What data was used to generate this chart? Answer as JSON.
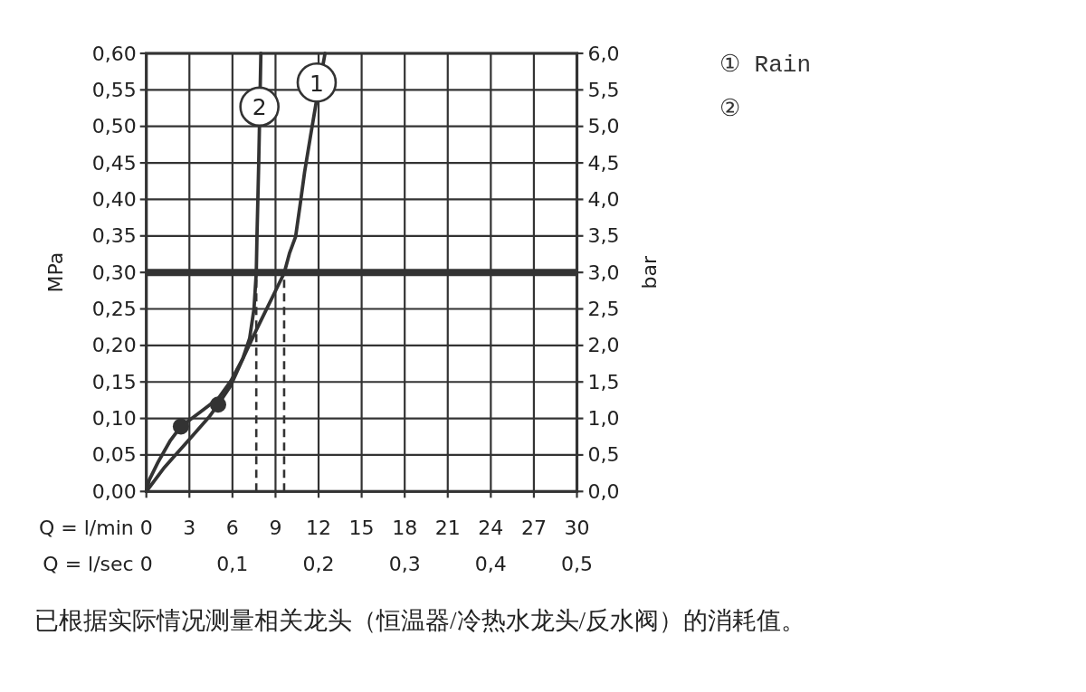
{
  "chart_data": {
    "type": "line",
    "xlabel": "Q = l/min",
    "x2label": "Q = l/sec",
    "ylabel": "MPa",
    "y2label": "bar",
    "xlim": [
      0,
      30
    ],
    "xticks": [
      0,
      3,
      6,
      9,
      12,
      15,
      18,
      21,
      24,
      27,
      30
    ],
    "x2lim": [
      0,
      0.5
    ],
    "x2ticks": [
      0,
      {
        "value": 0.1,
        "label": "0,1"
      },
      {
        "value": 0.2,
        "label": "0,2"
      },
      {
        "value": 0.3,
        "label": "0,3"
      },
      {
        "value": 0.4,
        "label": "0,4"
      },
      {
        "value": 0.5,
        "label": "0,5"
      }
    ],
    "ylim": [
      0,
      0.6
    ],
    "yticks": [
      {
        "value": 0,
        "label": "0,00"
      },
      {
        "value": 0.05,
        "label": "0,05"
      },
      {
        "value": 0.1,
        "label": "0,10"
      },
      {
        "value": 0.15,
        "label": "0,15"
      },
      {
        "value": 0.2,
        "label": "0,20"
      },
      {
        "value": 0.25,
        "label": "0,25"
      },
      {
        "value": 0.3,
        "label": "0,30"
      },
      {
        "value": 0.35,
        "label": "0,35"
      },
      {
        "value": 0.4,
        "label": "0,40"
      },
      {
        "value": 0.45,
        "label": "0,45"
      },
      {
        "value": 0.5,
        "label": "0,50"
      },
      {
        "value": 0.55,
        "label": "0,55"
      },
      {
        "value": 0.6,
        "label": "0,60"
      }
    ],
    "y2lim": [
      0,
      6
    ],
    "y2ticks": [
      {
        "value": 0,
        "label": "0,0"
      },
      {
        "value": 0.5,
        "label": "0,5"
      },
      {
        "value": 1,
        "label": "1,0"
      },
      {
        "value": 1.5,
        "label": "1,5"
      },
      {
        "value": 2,
        "label": "2,0"
      },
      {
        "value": 2.5,
        "label": "2,5"
      },
      {
        "value": 3,
        "label": "3,0"
      },
      {
        "value": 3.5,
        "label": "3,5"
      },
      {
        "value": 4,
        "label": "4,0"
      },
      {
        "value": 4.5,
        "label": "4,5"
      },
      {
        "value": 5,
        "label": "5,0"
      },
      {
        "value": 5.5,
        "label": "5,5"
      },
      {
        "value": 6,
        "label": "6,0"
      }
    ],
    "grid": true,
    "legend": "top right",
    "series": [
      {
        "name": "① Rain",
        "color": "#333333",
        "x": [
          0,
          1.26,
          2.94,
          4.41,
          5.0,
          5.88,
          6.82,
          7.66,
          9.6,
          9.97,
          10.4,
          10.71,
          11.03,
          11.44,
          11.8,
          12.45
        ],
        "values": [
          0,
          0.033,
          0.07,
          0.103,
          0.119,
          0.145,
          0.186,
          0.221,
          0.299,
          0.326,
          0.349,
          0.392,
          0.438,
          0.487,
          0.529,
          0.6
        ]
      },
      {
        "name": "②",
        "color": "#333333",
        "x": [
          0,
          0.21,
          0.84,
          1.68,
          2.41,
          3.78,
          5.04,
          5.88,
          6.72,
          7.2,
          7.5,
          7.66,
          7.71,
          7.77,
          7.83,
          7.88,
          7.98
        ],
        "values": [
          0,
          0.016,
          0.041,
          0.07,
          0.089,
          0.109,
          0.128,
          0.151,
          0.182,
          0.21,
          0.25,
          0.3,
          0.351,
          0.4,
          0.45,
          0.5,
          0.6
        ]
      },
      {
        "type": "scatter",
        "marker": "circle",
        "color": "#333333",
        "x": [
          2.41,
          5.0
        ],
        "values": [
          0.089,
          0.119
        ]
      },
      {
        "color": "#333333",
        "line_style": "dashed",
        "x": [
          7.66,
          7.66
        ],
        "values": [
          0,
          0.3
        ]
      },
      {
        "color": "#333333",
        "line_style": "dashed",
        "x": [
          9.6,
          9.6
        ],
        "values": [
          0,
          0.3
        ]
      }
    ],
    "ref_lines": [
      {
        "axis": "y",
        "value": 0.3,
        "color": "#333333"
      }
    ],
    "annotations": [
      {
        "text": "1",
        "x": 11.87,
        "y": 0.56
      },
      {
        "text": "2",
        "x": 7.88,
        "y": 0.527
      },
      "已根据实际情况测量相关龙头（恒温器/冷热水龙头/反水阀）的消耗值。"
    ]
  }
}
